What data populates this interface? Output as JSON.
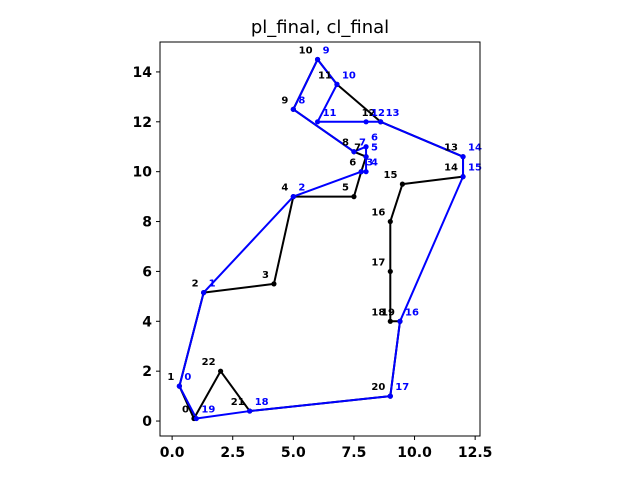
{
  "chart_data": {
    "type": "line",
    "title": "pl_final, cl_final",
    "xlabel": "",
    "ylabel": "",
    "xlim": [
      -0.5,
      12.7
    ],
    "ylim": [
      -0.6,
      15.2
    ],
    "xticks": [
      0.0,
      2.5,
      5.0,
      7.5,
      10.0,
      12.5
    ],
    "xtick_labels": [
      "0.0",
      "2.5",
      "5.0",
      "7.5",
      "10.0",
      "12.5"
    ],
    "yticks": [
      0,
      2,
      4,
      6,
      8,
      10,
      12,
      14
    ],
    "ytick_labels": [
      "0",
      "2",
      "4",
      "6",
      "8",
      "10",
      "12",
      "14"
    ],
    "grid": false,
    "legend": "none",
    "series": [
      {
        "color": "#000000",
        "points": [
          {
            "label": "0",
            "x": 0.9,
            "y": 0.1
          },
          {
            "label": "1",
            "x": 0.3,
            "y": 1.4
          },
          {
            "label": "2",
            "x": 1.3,
            "y": 5.15
          },
          {
            "label": "3",
            "x": 4.2,
            "y": 5.5
          },
          {
            "label": "4",
            "x": 5.0,
            "y": 9.0
          },
          {
            "label": "5",
            "x": 7.5,
            "y": 9.0
          },
          {
            "label": "6",
            "x": 7.8,
            "y": 10.0
          },
          {
            "label": "7",
            "x": 8.0,
            "y": 10.6
          },
          {
            "label": "8",
            "x": 7.5,
            "y": 10.8
          },
          {
            "label": "9",
            "x": 5.0,
            "y": 12.5
          },
          {
            "label": "10",
            "x": 6.0,
            "y": 14.5
          },
          {
            "label": "11",
            "x": 6.8,
            "y": 13.5
          },
          {
            "label": "12",
            "x": 8.6,
            "y": 12.0
          },
          {
            "label": "13",
            "x": 12.0,
            "y": 10.6
          },
          {
            "label": "14",
            "x": 12.0,
            "y": 9.8
          },
          {
            "label": "15",
            "x": 9.5,
            "y": 9.5
          },
          {
            "label": "16",
            "x": 9.0,
            "y": 8.0
          },
          {
            "label": "17",
            "x": 9.0,
            "y": 6.0
          },
          {
            "label": "18",
            "x": 9.0,
            "y": 4.0
          },
          {
            "label": "19",
            "x": 9.4,
            "y": 4.0
          },
          {
            "label": "20",
            "x": 9.0,
            "y": 1.0
          },
          {
            "label": "21",
            "x": 3.2,
            "y": 0.4
          },
          {
            "label": "22",
            "x": 2.0,
            "y": 2.0
          }
        ],
        "closed": true
      },
      {
        "color": "#0000ff",
        "points": [
          {
            "label": "0",
            "x": 0.3,
            "y": 1.4
          },
          {
            "label": "1",
            "x": 1.3,
            "y": 5.15
          },
          {
            "label": "2",
            "x": 5.0,
            "y": 9.0
          },
          {
            "label": "3",
            "x": 7.8,
            "y": 10.0
          },
          {
            "label": "4",
            "x": 8.0,
            "y": 10.0
          },
          {
            "label": "5",
            "x": 8.0,
            "y": 10.6
          },
          {
            "label": "6",
            "x": 8.0,
            "y": 11.0
          },
          {
            "label": "7",
            "x": 7.5,
            "y": 10.8
          },
          {
            "label": "8",
            "x": 5.0,
            "y": 12.5
          },
          {
            "label": "9",
            "x": 6.0,
            "y": 14.5
          },
          {
            "label": "10",
            "x": 6.8,
            "y": 13.5
          },
          {
            "label": "11",
            "x": 6.0,
            "y": 12.0
          },
          {
            "label": "12",
            "x": 8.0,
            "y": 12.0
          },
          {
            "label": "13",
            "x": 8.6,
            "y": 12.0
          },
          {
            "label": "14",
            "x": 12.0,
            "y": 10.6
          },
          {
            "label": "15",
            "x": 12.0,
            "y": 9.8
          },
          {
            "label": "16",
            "x": 9.4,
            "y": 4.0
          },
          {
            "label": "17",
            "x": 9.0,
            "y": 1.0
          },
          {
            "label": "18",
            "x": 3.2,
            "y": 0.4
          },
          {
            "label": "19",
            "x": 1.0,
            "y": 0.1
          }
        ],
        "closed": true
      }
    ]
  }
}
